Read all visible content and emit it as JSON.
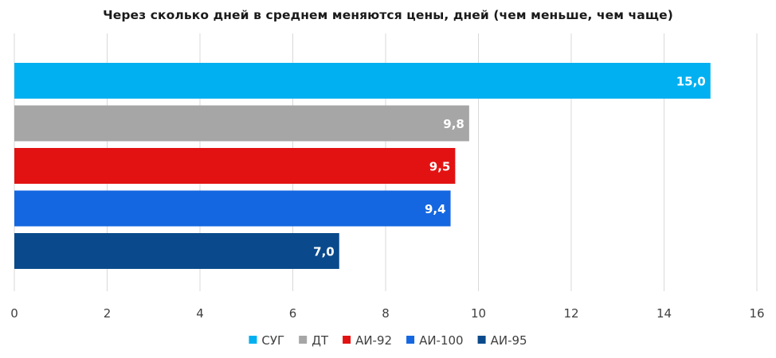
{
  "chart_data": {
    "type": "bar",
    "orientation": "horizontal",
    "title": "Через сколько дней в среднем меняются цены, дней (чем меньше, чем чаще)",
    "xlabel": "",
    "ylabel": "",
    "xlim": [
      0,
      16
    ],
    "x_ticks": [
      0,
      2,
      4,
      6,
      8,
      10,
      12,
      14,
      16
    ],
    "grid": "vertical",
    "legend_position": "bottom",
    "series": [
      {
        "name": "СУГ",
        "value": 15.0,
        "label": "15,0",
        "color": "#00B0F0"
      },
      {
        "name": "ДТ",
        "value": 9.8,
        "label": "9,8",
        "color": "#A6A6A6"
      },
      {
        "name": "АИ-92",
        "value": 9.5,
        "label": "9,5",
        "color": "#E31212"
      },
      {
        "name": "АИ-100",
        "value": 9.4,
        "label": "9,4",
        "color": "#1467E0"
      },
      {
        "name": "АИ-95",
        "value": 7.0,
        "label": "7,0",
        "color": "#0A4A8C"
      }
    ]
  }
}
